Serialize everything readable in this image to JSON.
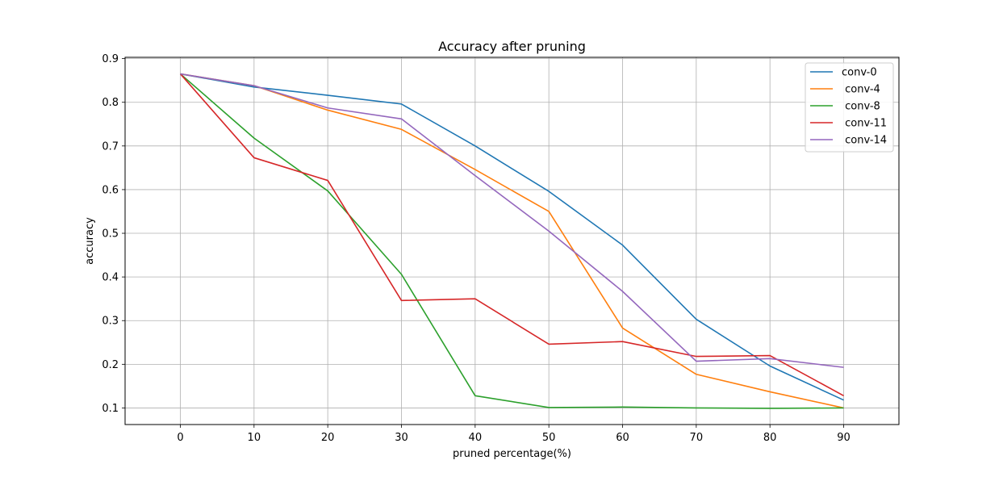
{
  "chart_data": {
    "type": "line",
    "title": "Accuracy after pruning",
    "xlabel": "pruned percentage(%)",
    "ylabel": "accuracy",
    "x": [
      0,
      10,
      20,
      30,
      40,
      50,
      60,
      70,
      80,
      90
    ],
    "x_ticks": [
      0,
      10,
      20,
      30,
      40,
      50,
      60,
      70,
      80,
      90
    ],
    "y_ticks": [
      0.1,
      0.2,
      0.3,
      0.4,
      0.5,
      0.6,
      0.7,
      0.8,
      0.9
    ],
    "xlim": [
      -7.5,
      97.5
    ],
    "ylim": [
      0.062,
      0.903
    ],
    "grid": true,
    "legend_position": "top-right",
    "series": [
      {
        "name": "conv-0",
        "color": "#1f77b4",
        "values": [
          0.865,
          0.835,
          0.816,
          0.796,
          0.7,
          0.596,
          0.473,
          0.303,
          0.196,
          0.118
        ]
      },
      {
        "name": " conv-4",
        "color": "#ff7f0e",
        "values": [
          0.865,
          0.838,
          0.782,
          0.738,
          0.646,
          0.55,
          0.283,
          0.177,
          0.137,
          0.1
        ]
      },
      {
        "name": " conv-8",
        "color": "#2ca02c",
        "values": [
          0.865,
          0.718,
          0.597,
          0.406,
          0.128,
          0.101,
          0.102,
          0.1,
          0.099,
          0.1
        ]
      },
      {
        "name": " conv-11",
        "color": "#d62728",
        "values": [
          0.865,
          0.673,
          0.621,
          0.346,
          0.35,
          0.246,
          0.252,
          0.218,
          0.22,
          0.128
        ]
      },
      {
        "name": " conv-14",
        "color": "#9467bd",
        "values": [
          0.865,
          0.838,
          0.787,
          0.762,
          0.632,
          0.505,
          0.367,
          0.207,
          0.213,
          0.193
        ]
      }
    ]
  }
}
